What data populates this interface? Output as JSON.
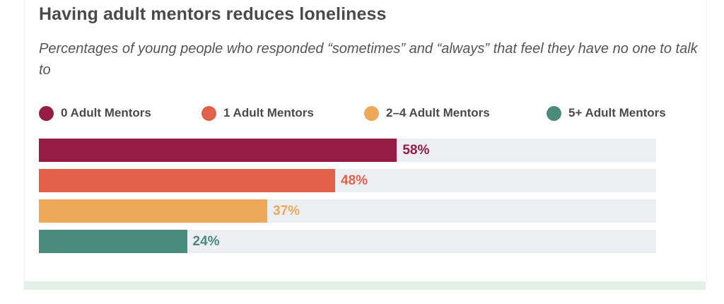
{
  "chart_data": {
    "type": "bar",
    "orientation": "horizontal",
    "title": "Having adult mentors reduces loneliness",
    "subtitle": "Percentages of young people who responded “sometimes” and “always” that feel they have no one to talk to",
    "categories": [
      "0 Adult Mentors",
      "1 Adult Mentors",
      "2–4 Adult Mentors",
      "5+ Adult Mentors"
    ],
    "values": [
      58,
      48,
      37,
      24
    ],
    "data_labels": [
      "58%",
      "48%",
      "37%",
      "24%"
    ],
    "colors": [
      "#951c45",
      "#e2614a",
      "#eea85a",
      "#4b8b7c"
    ],
    "xlim": [
      0,
      100
    ],
    "grid": false,
    "legend": "top"
  }
}
